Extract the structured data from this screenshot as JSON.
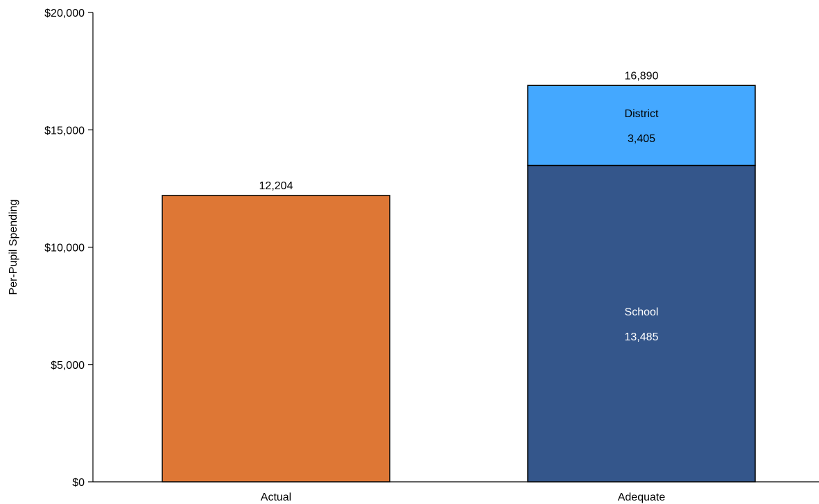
{
  "chart_data": {
    "type": "bar",
    "ylabel": "Per-Pupil Spending",
    "ylim": [
      0,
      20000
    ],
    "y_ticks": [
      {
        "value": 0,
        "label": "$0"
      },
      {
        "value": 5000,
        "label": "$5,000"
      },
      {
        "value": 10000,
        "label": "$10,000"
      },
      {
        "value": 15000,
        "label": "$15,000"
      },
      {
        "value": 20000,
        "label": "$20,000"
      }
    ],
    "categories": [
      "Actual",
      "Adequate"
    ],
    "bars": [
      {
        "category": "Actual",
        "total": 12204,
        "total_label": "12,204",
        "segments": [
          {
            "name": "",
            "value": 12204,
            "value_label": "",
            "color": "#DE7735"
          }
        ]
      },
      {
        "category": "Adequate",
        "total": 16890,
        "total_label": "16,890",
        "segments": [
          {
            "name": "School",
            "value": 13485,
            "value_label": "13,485",
            "color": "#34568B"
          },
          {
            "name": "District",
            "value": 3405,
            "value_label": "3,405",
            "color": "#44A8FF"
          }
        ]
      }
    ],
    "grid": false,
    "legend": "none"
  }
}
